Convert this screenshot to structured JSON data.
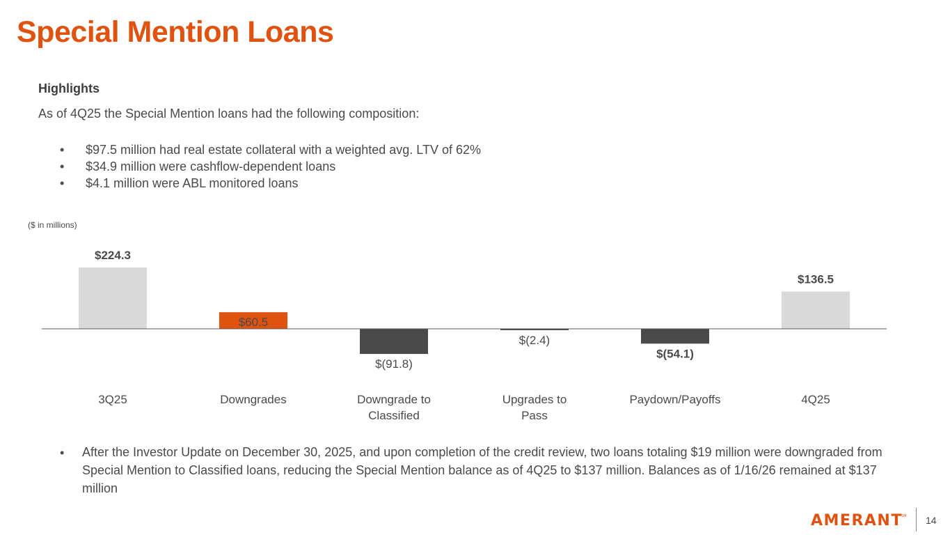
{
  "page": {
    "title": "Special Mention Loans",
    "highlights_heading": "Highlights",
    "intro": "As of 4Q25 the Special Mention loans had the following composition:",
    "bullets": [
      "$97.5 million had real estate collateral with a weighted avg. LTV of 62%",
      "$34.9 million were cashflow-dependent loans",
      "$4.1 million were ABL monitored loans"
    ],
    "units_note": "($ in millions)",
    "footer_note": "After the Investor Update on December 30, 2025, and upon completion of the credit review, two loans totaling $19 million were downgraded from Special Mention to Classified loans, reducing the Special Mention balance as of 4Q25 to $137 million. Balances as of 1/16/26 remained at $137 million",
    "logo_text": "AMERANT",
    "page_number": "14"
  },
  "colors": {
    "title": "#e0520f",
    "total_bar": "#d9d9d9",
    "increase_bar": "#e0520f",
    "decrease_bar": "#4a4a4a",
    "text": "#4a4a4a",
    "baseline": "#595959"
  },
  "chart_data": {
    "type": "bar",
    "categories": [
      "3Q25",
      "Downgrades",
      "Downgrade to Classified",
      "Upgrades to Pass",
      "Paydown/Payoffs",
      "4Q25"
    ],
    "values": [
      224.3,
      60.5,
      -91.8,
      -2.4,
      -54.1,
      136.5
    ],
    "value_labels": [
      "$224.3",
      "$60.5",
      "$(91.8)",
      "$(2.4)",
      "$(54.1)",
      "$136.5"
    ],
    "bar_roles": [
      "total",
      "increase",
      "decrease",
      "decrease",
      "decrease",
      "total"
    ],
    "bold_labels": [
      true,
      false,
      false,
      false,
      true,
      true
    ],
    "title": "",
    "xlabel": "",
    "ylabel": "",
    "baseline": 0,
    "grid": false,
    "legend": "none"
  }
}
